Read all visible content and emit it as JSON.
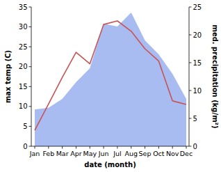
{
  "chart_data": {
    "type": "line",
    "x_label": "date (month)",
    "y_label": "max temp (C)",
    "y2_label": "med. precipitation (kg/m²)",
    "categories": [
      "Jan",
      "Feb",
      "Mar",
      "Apr",
      "May",
      "Jun",
      "Jul",
      "Aug",
      "Sep",
      "Oct",
      "Nov",
      "Dec"
    ],
    "series": [
      {
        "name": "med. precipitation",
        "type": "area",
        "axis": "y2",
        "color": "#a9bcf2",
        "values": [
          6.6,
          6.9,
          8.5,
          11.5,
          14,
          22,
          21.5,
          24,
          19,
          16.5,
          13,
          8.5
        ]
      },
      {
        "name": "max temp",
        "type": "line",
        "color": "#c75353",
        "values": [
          4,
          10.6,
          17.3,
          23.6,
          20.7,
          30.6,
          31.5,
          28.9,
          24.5,
          21.4,
          11.4,
          10.5
        ]
      }
    ],
    "ylim": [
      0,
      35
    ],
    "yticks": [
      0,
      5,
      10,
      15,
      20,
      25,
      30,
      35
    ],
    "y2lim": [
      0,
      25
    ],
    "y2ticks": [
      0,
      5,
      10,
      15,
      20,
      25
    ],
    "grid": false
  }
}
